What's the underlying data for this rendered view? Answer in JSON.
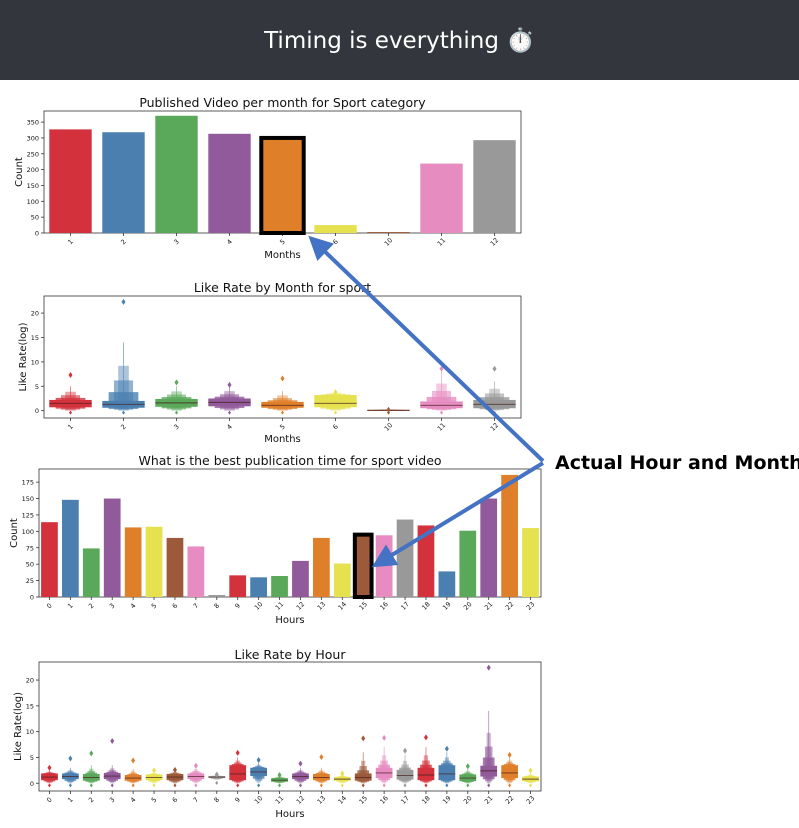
{
  "page": {
    "title": "Timing is everything ⏱️",
    "annotation": "Actual Hour and Month"
  },
  "colors": {
    "palette": [
      "#d3323c",
      "#4a7fb0",
      "#5aa85a",
      "#915a9a",
      "#e07f2a",
      "#e6e14e",
      "#9c5a3a",
      "#e68cc0",
      "#999999"
    ],
    "arrow": "#4472c4",
    "highlight": "#000000",
    "header_bg": "#33363c"
  },
  "chart_data": [
    {
      "type": "bar",
      "title": "Published Video per month for Sport category",
      "xlabel": "Months",
      "ylabel": "Count",
      "categories": [
        "1",
        "2",
        "3",
        "4",
        "5",
        "6",
        "10",
        "11",
        "12"
      ],
      "values": [
        327,
        318,
        370,
        313,
        300,
        25,
        3,
        219,
        293
      ],
      "colors": [
        "#d3323c",
        "#4a7fb0",
        "#5aa85a",
        "#915a9a",
        "#e07f2a",
        "#e6e14e",
        "#9c5a3a",
        "#e68cc0",
        "#999999"
      ],
      "ylim": [
        0,
        385
      ],
      "yticks": [
        0,
        50,
        100,
        150,
        200,
        250,
        300,
        350
      ],
      "highlighted_category": "5",
      "grid": false
    },
    {
      "type": "boxen",
      "title": "Like Rate by Month for sport",
      "xlabel": "Months",
      "ylabel": "Like Rate(log)",
      "categories": [
        "1",
        "2",
        "3",
        "4",
        "5",
        "6",
        "10",
        "11",
        "12"
      ],
      "medians": [
        1.5,
        1.3,
        1.6,
        1.7,
        1.1,
        1.5,
        0.1,
        1.1,
        1.3
      ],
      "q1": [
        0.7,
        0.6,
        0.8,
        0.9,
        0.6,
        0.7,
        0.05,
        0.5,
        0.5
      ],
      "q3": [
        2.2,
        2.0,
        2.4,
        2.5,
        1.8,
        3.2,
        0.15,
        1.9,
        2.2
      ],
      "upper_whisker": [
        5,
        14,
        5,
        5,
        4,
        4,
        0.3,
        8,
        6
      ],
      "outlier_max": [
        7.3,
        22.3,
        5.8,
        5.3,
        6.6,
        3.8,
        0.2,
        8.6,
        8.6
      ],
      "colors": [
        "#d3323c",
        "#4a7fb0",
        "#5aa85a",
        "#915a9a",
        "#e07f2a",
        "#e6e14e",
        "#9c5a3a",
        "#e68cc0",
        "#999999"
      ],
      "ylim": [
        -1.5,
        23.5
      ],
      "yticks": [
        0,
        5,
        10,
        15,
        20
      ],
      "grid": false
    },
    {
      "type": "bar",
      "title": "What is the best publication time for sport video",
      "xlabel": "Hours",
      "ylabel": "Count",
      "categories": [
        "0",
        "1",
        "2",
        "3",
        "4",
        "5",
        "6",
        "7",
        "8",
        "9",
        "10",
        "11",
        "12",
        "13",
        "14",
        "15",
        "16",
        "17",
        "18",
        "19",
        "20",
        "21",
        "22",
        "23"
      ],
      "values": [
        114,
        148,
        74,
        150,
        106,
        107,
        90,
        77,
        3,
        33,
        30,
        32,
        55,
        90,
        51,
        95,
        94,
        118,
        109,
        39,
        101,
        150,
        186,
        105
      ],
      "colors": [
        "#d3323c",
        "#4a7fb0",
        "#5aa85a",
        "#915a9a",
        "#e07f2a",
        "#e6e14e",
        "#9c5a3a",
        "#e68cc0",
        "#999999",
        "#d3323c",
        "#4a7fb0",
        "#5aa85a",
        "#915a9a",
        "#e07f2a",
        "#e6e14e",
        "#9c5a3a",
        "#e68cc0",
        "#999999",
        "#d3323c",
        "#4a7fb0",
        "#5aa85a",
        "#915a9a",
        "#e07f2a",
        "#e6e14e"
      ],
      "ylim": [
        0,
        195
      ],
      "yticks": [
        0,
        25,
        50,
        75,
        100,
        125,
        150,
        175
      ],
      "highlighted_category": "15",
      "grid": false
    },
    {
      "type": "boxen",
      "title": "Like Rate by Hour",
      "xlabel": "Hours",
      "ylabel": "Like Rate(log)",
      "categories": [
        "0",
        "1",
        "2",
        "3",
        "4",
        "5",
        "6",
        "7",
        "8",
        "9",
        "10",
        "11",
        "12",
        "13",
        "14",
        "15",
        "16",
        "17",
        "18",
        "19",
        "20",
        "21",
        "22",
        "23"
      ],
      "medians": [
        1.2,
        1.3,
        1.1,
        1.4,
        1.0,
        1.1,
        1.2,
        1.3,
        1.2,
        1.8,
        2.2,
        0.6,
        1.3,
        1.1,
        0.8,
        1.1,
        2.0,
        1.5,
        1.6,
        1.8,
        1.0,
        2.4,
        2.0,
        0.8
      ],
      "q1": [
        0.6,
        0.8,
        0.5,
        0.8,
        0.5,
        0.6,
        0.6,
        0.8,
        1.0,
        0.6,
        1.4,
        0.3,
        0.8,
        0.6,
        0.5,
        0.5,
        1.0,
        0.7,
        0.6,
        0.6,
        0.4,
        1.3,
        1.0,
        0.4
      ],
      "q3": [
        1.9,
        1.9,
        1.8,
        2.0,
        1.6,
        1.7,
        1.8,
        1.9,
        1.4,
        3.5,
        3.0,
        1.0,
        1.9,
        1.8,
        1.2,
        1.9,
        3.0,
        2.6,
        3.0,
        3.5,
        1.7,
        3.4,
        3.5,
        1.3
      ],
      "upper_whisker": [
        2.5,
        3.0,
        3.5,
        3.5,
        2.8,
        2.2,
        2.5,
        3.2,
        1.6,
        5.0,
        4.0,
        1.5,
        3.0,
        3.0,
        1.8,
        6.0,
        7.0,
        5.5,
        7.0,
        6.0,
        2.8,
        14.0,
        5.0,
        2.0
      ],
      "outlier_max": [
        3.0,
        4.8,
        5.8,
        8.2,
        4.4,
        2.5,
        2.6,
        3.4,
        1.7,
        5.9,
        4.5,
        1.6,
        3.8,
        5.1,
        1.9,
        8.7,
        8.8,
        6.3,
        8.9,
        6.7,
        3.3,
        22.4,
        5.5,
        2.5
      ],
      "colors": [
        "#d3323c",
        "#4a7fb0",
        "#5aa85a",
        "#915a9a",
        "#e07f2a",
        "#e6e14e",
        "#9c5a3a",
        "#e68cc0",
        "#999999",
        "#d3323c",
        "#4a7fb0",
        "#5aa85a",
        "#915a9a",
        "#e07f2a",
        "#e6e14e",
        "#9c5a3a",
        "#e68cc0",
        "#999999",
        "#d3323c",
        "#4a7fb0",
        "#5aa85a",
        "#915a9a",
        "#e07f2a",
        "#e6e14e"
      ],
      "ylim": [
        -1.5,
        23.5
      ],
      "yticks": [
        0,
        5,
        10,
        15,
        20
      ],
      "highlighted_category": "15",
      "grid": false
    }
  ]
}
